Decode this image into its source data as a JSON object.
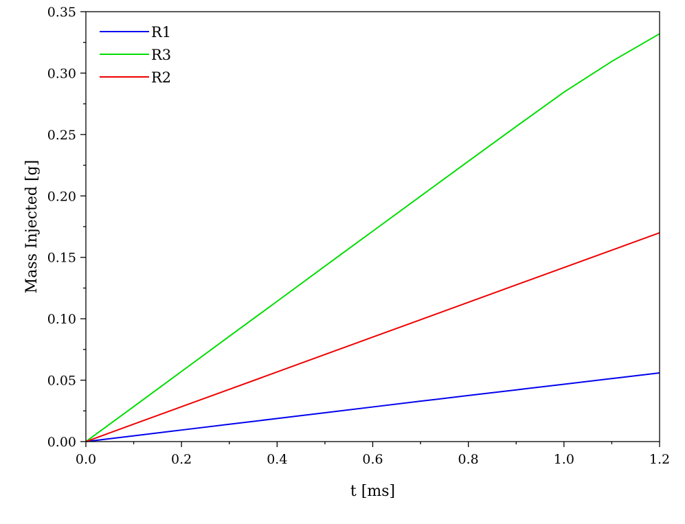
{
  "chart_data": {
    "type": "line",
    "title": "",
    "xlabel": "t [ms]",
    "ylabel": "Mass Injected [g]",
    "xlim": [
      0,
      1.2
    ],
    "ylim": [
      0,
      0.35
    ],
    "x_ticks": [
      "0.0",
      "0.2",
      "0.4",
      "0.6",
      "0.8",
      "1.0",
      "1.2"
    ],
    "x_tick_values": [
      0,
      0.2,
      0.4,
      0.6,
      0.8,
      1.0,
      1.2
    ],
    "x_minor_step": 0.1,
    "y_ticks": [
      "0.00",
      "0.05",
      "0.10",
      "0.15",
      "0.20",
      "0.25",
      "0.30",
      "0.35"
    ],
    "y_tick_values": [
      0,
      0.05,
      0.1,
      0.15,
      0.2,
      0.25,
      0.3,
      0.35
    ],
    "y_minor_step": 0.025,
    "grid": false,
    "legend_position": "top-left",
    "series": [
      {
        "name": "R1",
        "color": "#0000ee",
        "x": [
          0,
          0.1,
          0.2,
          0.3,
          0.4,
          0.5,
          0.6,
          0.7,
          0.8,
          0.9,
          1.0,
          1.1,
          1.2
        ],
        "y": [
          0,
          0.0047,
          0.0094,
          0.0141,
          0.0188,
          0.0235,
          0.0282,
          0.0329,
          0.0375,
          0.0421,
          0.0467,
          0.0513,
          0.0559
        ]
      },
      {
        "name": "R3",
        "color": "#00dd00",
        "x": [
          0,
          0.1,
          0.2,
          0.3,
          0.4,
          0.5,
          0.6,
          0.7,
          0.8,
          0.9,
          1.0,
          1.1,
          1.2
        ],
        "y": [
          0,
          0.0285,
          0.0571,
          0.0857,
          0.1142,
          0.1428,
          0.1713,
          0.1998,
          0.2282,
          0.2565,
          0.2845,
          0.3095,
          0.332
        ]
      },
      {
        "name": "R2",
        "color": "#ee0000",
        "x": [
          0,
          0.1,
          0.2,
          0.3,
          0.4,
          0.5,
          0.6,
          0.7,
          0.8,
          0.9,
          1.0,
          1.1,
          1.2
        ],
        "y": [
          0,
          0.0142,
          0.0284,
          0.0425,
          0.0567,
          0.0709,
          0.0851,
          0.0992,
          0.1134,
          0.1276,
          0.1417,
          0.1558,
          0.17
        ]
      }
    ]
  }
}
